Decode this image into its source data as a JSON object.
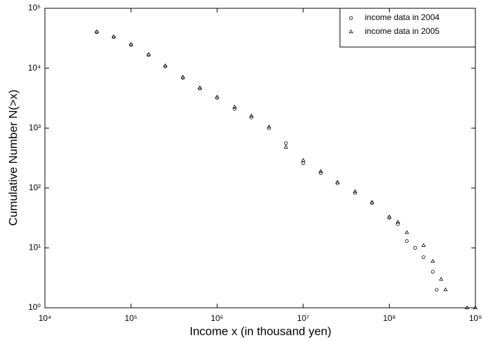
{
  "chart_data": {
    "type": "scatter",
    "xlabel": "Income x (in thousand yen)",
    "ylabel": "Cumulative Number N(>x)",
    "xscale": "log",
    "yscale": "log",
    "xlim": [
      10000,
      1000000000
    ],
    "ylim": [
      1,
      100000
    ],
    "xticks": [
      {
        "value": 10000,
        "label": "10⁴"
      },
      {
        "value": 100000,
        "label": "10⁵"
      },
      {
        "value": 1000000,
        "label": "10⁶"
      },
      {
        "value": 10000000,
        "label": "10⁷"
      },
      {
        "value": 100000000,
        "label": "10⁸"
      },
      {
        "value": 1000000000,
        "label": "10⁹"
      }
    ],
    "yticks": [
      {
        "value": 1,
        "label": "10⁰"
      },
      {
        "value": 10,
        "label": "10¹"
      },
      {
        "value": 100,
        "label": "10²"
      },
      {
        "value": 1000,
        "label": "10³"
      },
      {
        "value": 10000,
        "label": "10⁴"
      },
      {
        "value": 100000,
        "label": "10⁵"
      }
    ],
    "legend": "upper right",
    "series": [
      {
        "name": "income data in 2004",
        "marker": "circle",
        "color": "#000000",
        "x": [
          40000,
          63000,
          100000,
          160000,
          250000,
          400000,
          630000,
          1000000,
          1600000,
          2500000,
          4000000,
          6300000,
          10000000,
          16000000,
          25000000,
          40000000,
          63000000,
          100000000,
          126000000,
          160000000,
          200000000,
          250000000,
          320000000,
          355000000
        ],
        "values": [
          40000,
          33000,
          24500,
          16600,
          10700,
          6900,
          4600,
          3200,
          2100,
          1500,
          1000,
          560,
          260,
          178,
          120,
          83,
          56,
          32,
          25,
          13,
          10,
          7,
          4,
          2
        ]
      },
      {
        "name": "income data in 2005",
        "marker": "triangle",
        "color": "#000000",
        "x": [
          40000,
          63000,
          100000,
          160000,
          250000,
          400000,
          630000,
          1000000,
          1600000,
          2500000,
          4000000,
          6300000,
          10000000,
          16000000,
          25000000,
          40000000,
          63000000,
          100000000,
          126000000,
          160000000,
          250000000,
          320000000,
          400000000,
          450000000,
          800000000,
          1000000000
        ],
        "values": [
          40500,
          33500,
          25000,
          17000,
          11000,
          7100,
          4700,
          3300,
          2250,
          1600,
          1050,
          480,
          290,
          190,
          125,
          87,
          58,
          33,
          27,
          18,
          11,
          6,
          3,
          2,
          1,
          1
        ]
      }
    ]
  }
}
